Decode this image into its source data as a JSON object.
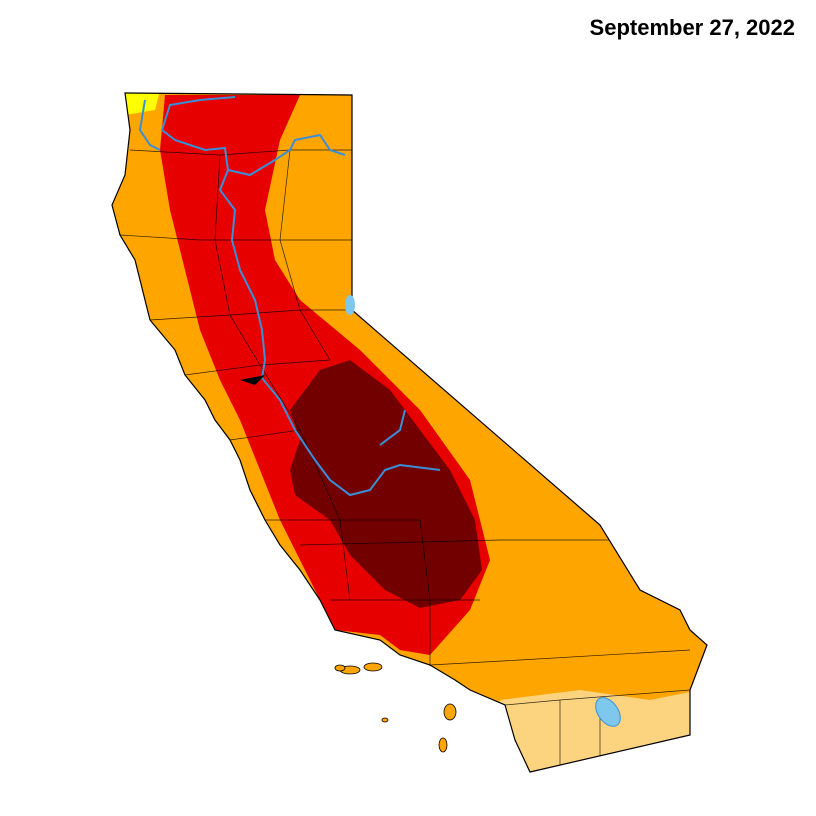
{
  "title": "September 27, 2022"
}
